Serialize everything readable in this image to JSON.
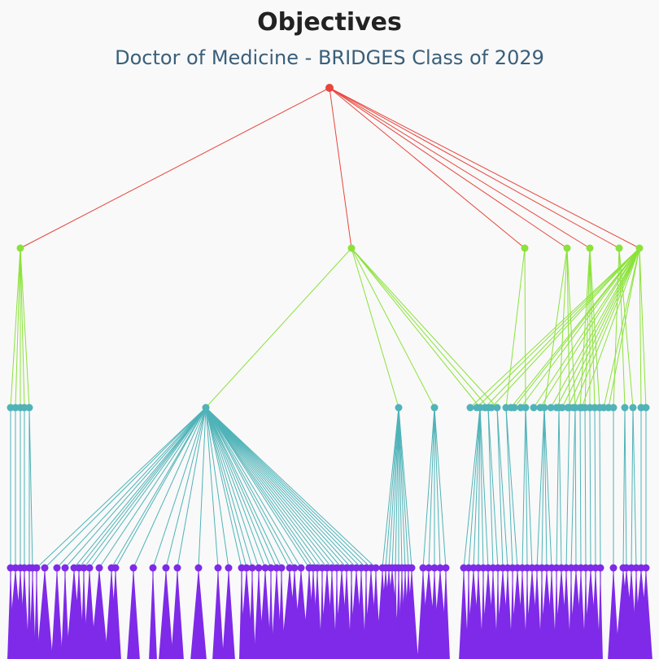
{
  "header": {
    "title": "Objectives",
    "subtitle": "Doctor of Medicine - BRIDGES Class of 2029"
  },
  "colors": {
    "background": "#f9f9f9",
    "title": "#222222",
    "subtitle": "#3a5f7a",
    "level0": "#e8453c",
    "level1": "#8be23a",
    "level2": "#4fb3b8",
    "level3": "#7e2ae8"
  },
  "tree": {
    "root_count": 1,
    "level1_count": 7,
    "level2_count": 44,
    "level3_count": 150
  }
}
